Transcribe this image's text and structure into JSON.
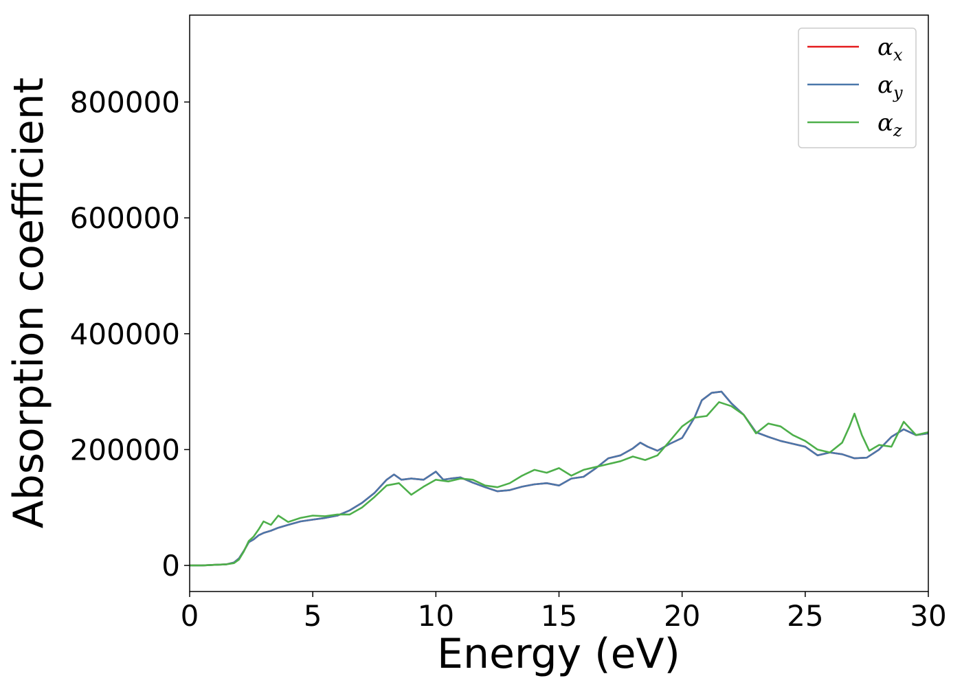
{
  "chart_data": {
    "type": "line",
    "xlabel": "Energy (eV)",
    "ylabel": "Absorption coefficient",
    "xlim": [
      0,
      30
    ],
    "ylim": [
      -45000,
      950000
    ],
    "xticks": [
      "0",
      "5",
      "10",
      "15",
      "20",
      "25",
      "30"
    ],
    "yticks": [
      "0",
      "200000",
      "400000",
      "600000",
      "800000"
    ],
    "grid": false,
    "legend_position": "top-right",
    "series": [
      {
        "name": "αx",
        "name_base": "α",
        "name_sub": "x",
        "color": "#e41a1c",
        "x": [
          0,
          0.5,
          1,
          1.5,
          1.8,
          2.0,
          2.2,
          2.4,
          2.6,
          2.8,
          3.0,
          3.3,
          3.6,
          4.0,
          4.5,
          5.0,
          5.5,
          6.0,
          6.5,
          7.0,
          7.5,
          8.0,
          8.3,
          8.6,
          9.0,
          9.5,
          10.0,
          10.3,
          10.6,
          11.0,
          11.5,
          12.0,
          12.5,
          13.0,
          13.5,
          14.0,
          14.5,
          15.0,
          15.5,
          16.0,
          16.5,
          17.0,
          17.5,
          18.0,
          18.3,
          18.6,
          19.0,
          19.5,
          20.0,
          20.5,
          20.8,
          21.2,
          21.6,
          22.0,
          22.5,
          23.0,
          23.5,
          24.0,
          24.5,
          25.0,
          25.5,
          26.0,
          26.5,
          27.0,
          27.5,
          28.0,
          28.5,
          29.0,
          29.5,
          30.0
        ],
        "values": [
          0,
          0,
          1000,
          2000,
          5000,
          12000,
          25000,
          40000,
          45000,
          52000,
          56000,
          60000,
          65000,
          70000,
          76000,
          79000,
          82000,
          86000,
          95000,
          108000,
          125000,
          148000,
          157000,
          148000,
          150000,
          148000,
          162000,
          148000,
          150000,
          152000,
          143000,
          135000,
          128000,
          130000,
          136000,
          140000,
          142000,
          138000,
          150000,
          153000,
          168000,
          185000,
          190000,
          202000,
          212000,
          205000,
          198000,
          210000,
          220000,
          255000,
          285000,
          298000,
          300000,
          280000,
          260000,
          230000,
          222000,
          215000,
          210000,
          205000,
          190000,
          195000,
          192000,
          185000,
          186000,
          200000,
          222000,
          235000,
          225000,
          228000
        ]
      },
      {
        "name": "αy",
        "name_base": "α",
        "name_sub": "y",
        "color": "#4a77aa",
        "x": [
          0,
          0.5,
          1,
          1.5,
          1.8,
          2.0,
          2.2,
          2.4,
          2.6,
          2.8,
          3.0,
          3.3,
          3.6,
          4.0,
          4.5,
          5.0,
          5.5,
          6.0,
          6.5,
          7.0,
          7.5,
          8.0,
          8.3,
          8.6,
          9.0,
          9.5,
          10.0,
          10.3,
          10.6,
          11.0,
          11.5,
          12.0,
          12.5,
          13.0,
          13.5,
          14.0,
          14.5,
          15.0,
          15.5,
          16.0,
          16.5,
          17.0,
          17.5,
          18.0,
          18.3,
          18.6,
          19.0,
          19.5,
          20.0,
          20.5,
          20.8,
          21.2,
          21.6,
          22.0,
          22.5,
          23.0,
          23.5,
          24.0,
          24.5,
          25.0,
          25.5,
          26.0,
          26.5,
          27.0,
          27.5,
          28.0,
          28.5,
          29.0,
          29.5,
          30.0
        ],
        "values": [
          0,
          0,
          1000,
          2000,
          5000,
          12000,
          25000,
          40000,
          45000,
          52000,
          56000,
          60000,
          65000,
          70000,
          76000,
          79000,
          82000,
          86000,
          95000,
          108000,
          125000,
          148000,
          157000,
          148000,
          150000,
          148000,
          162000,
          148000,
          150000,
          152000,
          143000,
          135000,
          128000,
          130000,
          136000,
          140000,
          142000,
          138000,
          150000,
          153000,
          168000,
          185000,
          190000,
          202000,
          212000,
          205000,
          198000,
          210000,
          220000,
          255000,
          285000,
          298000,
          300000,
          280000,
          260000,
          230000,
          222000,
          215000,
          210000,
          205000,
          190000,
          195000,
          192000,
          185000,
          186000,
          200000,
          222000,
          235000,
          225000,
          228000
        ]
      },
      {
        "name": "αz",
        "name_base": "α",
        "name_sub": "z",
        "color": "#4daf4a",
        "x": [
          0,
          0.5,
          1,
          1.5,
          1.8,
          2.0,
          2.2,
          2.4,
          2.6,
          2.8,
          3.0,
          3.3,
          3.6,
          4.0,
          4.5,
          5.0,
          5.5,
          6.0,
          6.5,
          7.0,
          7.5,
          8.0,
          8.5,
          9.0,
          9.5,
          10.0,
          10.5,
          11.0,
          11.5,
          12.0,
          12.5,
          13.0,
          13.5,
          14.0,
          14.5,
          15.0,
          15.5,
          16.0,
          16.5,
          17.0,
          17.5,
          18.0,
          18.5,
          19.0,
          19.5,
          20.0,
          20.5,
          21.0,
          21.5,
          22.0,
          22.5,
          23.0,
          23.5,
          24.0,
          24.5,
          25.0,
          25.5,
          26.0,
          26.5,
          26.8,
          27.0,
          27.3,
          27.6,
          28.0,
          28.5,
          29.0,
          29.5,
          30.0
        ],
        "values": [
          0,
          0,
          1000,
          2000,
          4000,
          10000,
          24000,
          42000,
          50000,
          62000,
          76000,
          70000,
          86000,
          75000,
          82000,
          86000,
          85000,
          88000,
          88000,
          100000,
          118000,
          138000,
          142000,
          122000,
          136000,
          148000,
          145000,
          150000,
          148000,
          138000,
          135000,
          142000,
          155000,
          165000,
          160000,
          168000,
          155000,
          165000,
          170000,
          175000,
          180000,
          188000,
          182000,
          190000,
          215000,
          240000,
          255000,
          258000,
          282000,
          275000,
          260000,
          228000,
          245000,
          240000,
          225000,
          215000,
          200000,
          195000,
          212000,
          240000,
          262000,
          225000,
          198000,
          208000,
          205000,
          248000,
          225000,
          230000
        ]
      }
    ]
  }
}
